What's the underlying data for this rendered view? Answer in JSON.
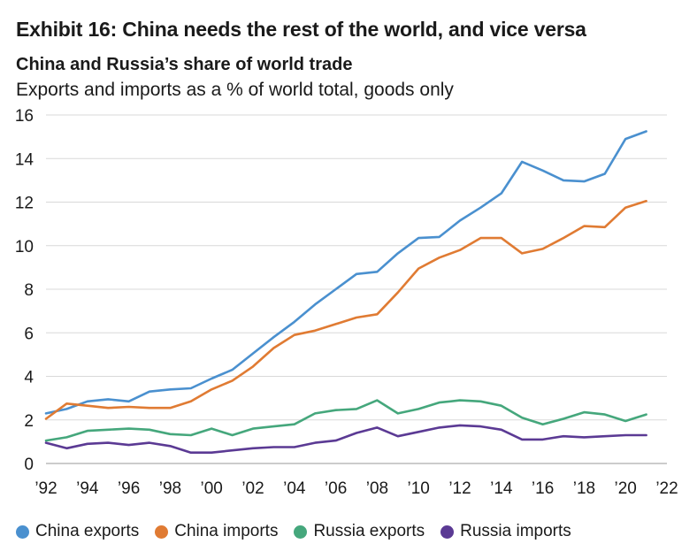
{
  "header": {
    "exhibit_title": "Exhibit 16: China needs the rest of the world, and vice versa",
    "chart_title": "China and Russia’s share of world trade",
    "chart_subtitle": "Exports and imports as a % of world total, goods only"
  },
  "chart_data": {
    "type": "line",
    "title": "China and Russia’s share of world trade",
    "subtitle": "Exports and imports as a % of world total, goods only",
    "xlabel": "",
    "ylabel": "",
    "xlim": [
      1992,
      2022
    ],
    "ylim": [
      0,
      16
    ],
    "x_ticks": [
      1992,
      1994,
      1996,
      1998,
      2000,
      2002,
      2004,
      2006,
      2008,
      2010,
      2012,
      2014,
      2016,
      2018,
      2020,
      2022
    ],
    "x_tick_labels": [
      "’92",
      "’94",
      "’96",
      "’98",
      "’00",
      "’02",
      "’04",
      "’06",
      "’08",
      "’10",
      "’12",
      "’14",
      "’16",
      "’18",
      "’20",
      "’22"
    ],
    "y_ticks": [
      0,
      2,
      4,
      6,
      8,
      10,
      12,
      14,
      16
    ],
    "y_tick_labels": [
      "0",
      "2",
      "4",
      "6",
      "8",
      "10",
      "12",
      "14",
      "16"
    ],
    "grid": "horizontal",
    "legend_position": "bottom",
    "x": [
      1992,
      1993,
      1994,
      1995,
      1996,
      1997,
      1998,
      1999,
      2000,
      2001,
      2002,
      2003,
      2004,
      2005,
      2006,
      2007,
      2008,
      2009,
      2010,
      2011,
      2012,
      2013,
      2014,
      2015,
      2016,
      2017,
      2018,
      2019,
      2020,
      2021
    ],
    "series": [
      {
        "name": "China exports",
        "color": "#4a90cf",
        "values": [
          2.3,
          2.5,
          2.85,
          2.95,
          2.85,
          3.3,
          3.4,
          3.45,
          3.9,
          4.3,
          5.05,
          5.8,
          6.5,
          7.3,
          8.0,
          8.7,
          8.8,
          9.65,
          10.35,
          10.4,
          11.15,
          11.75,
          12.4,
          13.85,
          13.45,
          13.0,
          12.95,
          13.3,
          14.9,
          15.25
        ]
      },
      {
        "name": "China imports",
        "color": "#e07b33",
        "values": [
          2.05,
          2.75,
          2.65,
          2.55,
          2.6,
          2.55,
          2.55,
          2.85,
          3.4,
          3.8,
          4.45,
          5.3,
          5.9,
          6.1,
          6.4,
          6.7,
          6.85,
          7.85,
          8.95,
          9.45,
          9.8,
          10.35,
          10.35,
          9.65,
          9.85,
          10.35,
          10.9,
          10.85,
          11.75,
          12.05
        ]
      },
      {
        "name": "Russia exports",
        "color": "#45a77c",
        "values": [
          1.05,
          1.2,
          1.5,
          1.55,
          1.6,
          1.55,
          1.35,
          1.3,
          1.6,
          1.3,
          1.6,
          1.7,
          1.8,
          2.3,
          2.45,
          2.5,
          2.9,
          2.3,
          2.5,
          2.8,
          2.9,
          2.85,
          2.65,
          2.1,
          1.8,
          2.05,
          2.35,
          2.25,
          1.95,
          2.25
        ]
      },
      {
        "name": "Russia imports",
        "color": "#5b3a94",
        "values": [
          0.95,
          0.7,
          0.9,
          0.95,
          0.85,
          0.95,
          0.8,
          0.5,
          0.5,
          0.6,
          0.7,
          0.75,
          0.75,
          0.95,
          1.05,
          1.4,
          1.65,
          1.25,
          1.45,
          1.65,
          1.75,
          1.7,
          1.55,
          1.1,
          1.1,
          1.25,
          1.2,
          1.25,
          1.3,
          1.3
        ]
      }
    ]
  }
}
